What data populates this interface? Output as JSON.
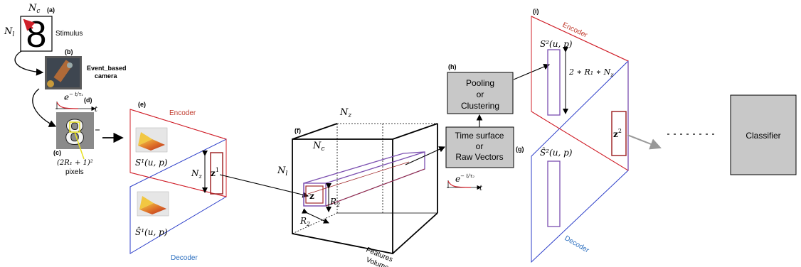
{
  "panels": {
    "a": "(a)",
    "b": "(b)",
    "c": "(c)",
    "d": "(d)",
    "e": "(e)",
    "f": "(f)",
    "g": "(g)",
    "h": "(h)",
    "i": "(i)"
  },
  "stimulus": {
    "digit": "8",
    "label": "Stimulus",
    "nc": "N",
    "nc_sub": "c",
    "nl": "N",
    "nl_sub": "l"
  },
  "camera": {
    "label_line1": "Event_based",
    "label_line2": "camera"
  },
  "decay": {
    "d_expr": "e",
    "d_exp": "− t/τ₁",
    "g_exp": "− t/τ₂",
    "axis": "t"
  },
  "patch": {
    "expr": "(2R₁ + 1)²",
    "unit": "pixels"
  },
  "layer1": {
    "encoder": "Encoder",
    "decoder": "Decoder",
    "s_label": "S¹(u, p)",
    "s_hat_label": "Ŝ¹(u, p)",
    "nz": "N",
    "nz_sub": "z",
    "z": "z",
    "z_sup": "1"
  },
  "volume": {
    "nz": "N",
    "nz_sub": "z",
    "nc": "N",
    "nc_sub": "c",
    "nl": "N",
    "nl_sub": "l",
    "z": "z",
    "r2": "R",
    "r2_sub": "2",
    "r2b": "R",
    "r2b_sub": "2",
    "label_line1": "Features",
    "label_line2": "Volume"
  },
  "time_surface_box": {
    "line1": "Time surface",
    "line2": "or",
    "line3": "Raw Vectors"
  },
  "pooling_box": {
    "line1": "Pooling",
    "line2": "or",
    "line3": "Clustering"
  },
  "layer2": {
    "encoder": "Encoder",
    "decoder": "Decoder",
    "s_label": "S²(u, p)",
    "s_hat_label": "Ŝ²(u, p)",
    "dim": "2 ∗ R₁ ∗ N",
    "dim_sub": "z",
    "z": "z",
    "z_sup": "2"
  },
  "classifier": {
    "label": "Classifier"
  },
  "colors": {
    "encoder": "#c0392b",
    "decoder": "#2c3ec9",
    "purple": "#7b4fb0",
    "box": "#c8c8c8",
    "zbox": "#a0282a"
  }
}
